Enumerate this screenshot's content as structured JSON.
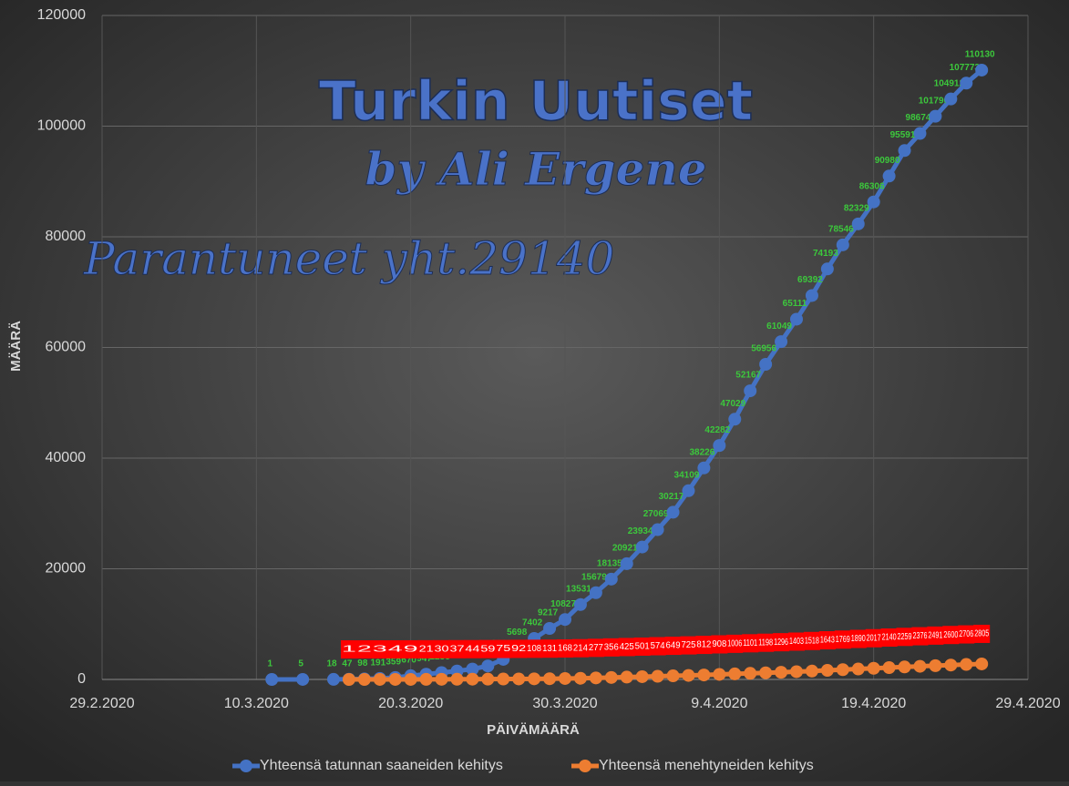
{
  "chart_data": {
    "type": "line",
    "annotations": [
      "Turkin Uutiset",
      "by Ali Ergene",
      "Parantuneet yht.29140"
    ],
    "xlabel": "PÄIVÄMÄÄRÄ",
    "ylabel": "MÄÄRÄ",
    "xlim": [
      "29.2.2020",
      "29.4.2020"
    ],
    "xticks": [
      "29.2.2020",
      "10.3.2020",
      "20.3.2020",
      "30.3.2020",
      "9.4.2020",
      "19.4.2020",
      "29.4.2020"
    ],
    "ylim": [
      0,
      120000
    ],
    "yticks": [
      0,
      20000,
      40000,
      60000,
      80000,
      100000,
      120000
    ],
    "grid": true,
    "legend": "bottom",
    "series": [
      {
        "name": "Yhteensä tatunnan saaneiden kehitys",
        "color": "#4472c4",
        "x": [
          "11.3.2020",
          "13.3.2020",
          "14.3.2020",
          "15.3.2020",
          "16.3.2020",
          "17.3.2020",
          "18.3.2020",
          "19.3.2020",
          "20.3.2020",
          "21.3.2020",
          "22.3.2020",
          "23.3.2020",
          "24.3.2020",
          "25.3.2020",
          "26.3.2020",
          "27.3.2020",
          "28.3.2020",
          "29.3.2020",
          "30.3.2020",
          "31.3.2020",
          "1.4.2020",
          "2.4.2020",
          "3.4.2020",
          "4.4.2020",
          "5.4.2020",
          "6.4.2020",
          "7.4.2020",
          "8.4.2020",
          "9.4.2020",
          "10.4.2020",
          "11.4.2020",
          "12.4.2020",
          "13.4.2020",
          "14.4.2020",
          "15.4.2020",
          "16.4.2020",
          "17.4.2020",
          "18.4.2020",
          "19.4.2020",
          "20.4.2020",
          "21.4.2020",
          "22.4.2020",
          "23.4.2020",
          "24.4.2020",
          "25.4.2020",
          "26.4.2020"
        ],
        "values": [
          1,
          5,
          null,
          18,
          47,
          98,
          191,
          359,
          670,
          947,
          1236,
          1529,
          1872,
          2433,
          3629,
          5698,
          7402,
          9217,
          10827,
          13531,
          15679,
          18135,
          20921,
          23934,
          27069,
          30217,
          34109,
          38226,
          42282,
          47029,
          52167,
          56956,
          61049,
          65111,
          69392,
          74193,
          78546,
          82329,
          86306,
          90980,
          95591,
          98674,
          101790,
          104912,
          107773,
          110130
        ]
      },
      {
        "name": "Yhteensä menehtyneiden kehitys",
        "color": "#ed7d31",
        "x": [
          "16.3.2020",
          "17.3.2020",
          "18.3.2020",
          "19.3.2020",
          "20.3.2020",
          "21.3.2020",
          "22.3.2020",
          "23.3.2020",
          "24.3.2020",
          "25.3.2020",
          "26.3.2020",
          "27.3.2020",
          "28.3.2020",
          "29.3.2020",
          "30.3.2020",
          "31.3.2020",
          "1.4.2020",
          "2.4.2020",
          "3.4.2020",
          "4.4.2020",
          "5.4.2020",
          "6.4.2020",
          "7.4.2020",
          "8.4.2020",
          "9.4.2020",
          "10.4.2020",
          "11.4.2020",
          "12.4.2020",
          "13.4.2020",
          "14.4.2020",
          "15.4.2020",
          "16.4.2020",
          "17.4.2020",
          "18.4.2020",
          "19.4.2020",
          "20.4.2020",
          "21.4.2020",
          "22.4.2020",
          "23.4.2020",
          "24.4.2020",
          "25.4.2020",
          "26.4.2020"
        ],
        "values": [
          1,
          2,
          3,
          4,
          9,
          21,
          30,
          37,
          44,
          59,
          75,
          92,
          108,
          131,
          168,
          214,
          277,
          356,
          425,
          501,
          574,
          649,
          725,
          812,
          908,
          1006,
          1101,
          1198,
          1296,
          1403,
          1518,
          1643,
          1769,
          1890,
          2017,
          2140,
          2259,
          2376,
          2491,
          2600,
          2706,
          2805
        ]
      }
    ]
  }
}
